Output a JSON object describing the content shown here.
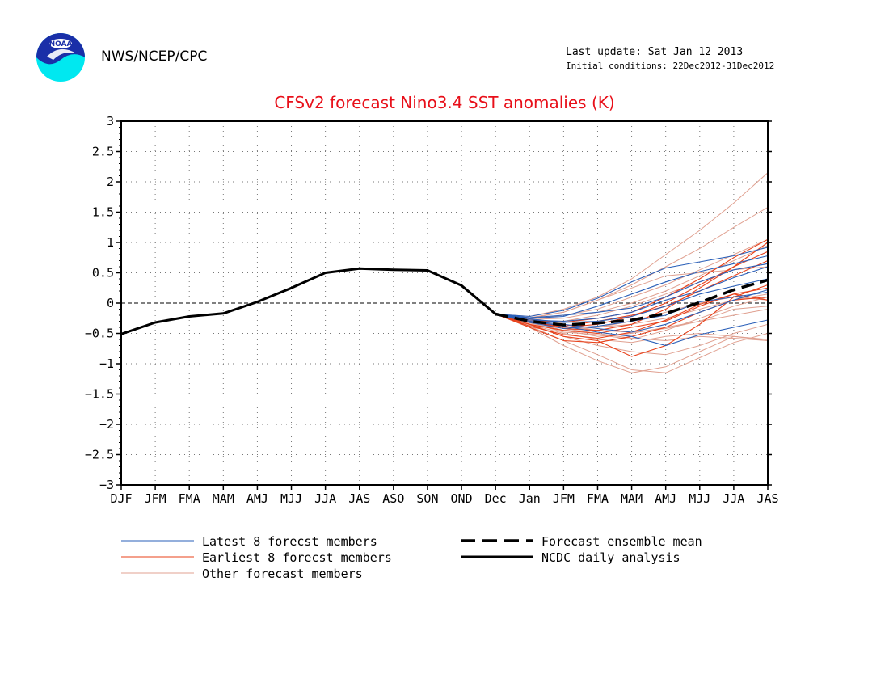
{
  "header": {
    "organization": "NWS/NCEP/CPC",
    "last_update": "Last update: Sat Jan 12 2013",
    "initial_conditions": "Initial conditions: 22Dec2012-31Dec2012",
    "logo_text": "NOAA"
  },
  "chart_data": {
    "type": "line",
    "title": "CFSv2 forecast Nino3.4 SST anomalies (K)",
    "xlabel": "",
    "ylabel": "",
    "ylim": [
      -3,
      3
    ],
    "yticks": [
      3,
      2.5,
      2,
      1.5,
      1,
      0.5,
      0,
      -0.5,
      -1,
      -1.5,
      -2,
      -2.5,
      -3
    ],
    "ytick_labels": [
      "3",
      "2.5",
      "2",
      "1.5",
      "1",
      "0.5",
      "0",
      "−0.5",
      "−1",
      "−1.5",
      "−2",
      "−2.5",
      "−3"
    ],
    "categories": [
      "DJF",
      "JFM",
      "FMA",
      "MAM",
      "AMJ",
      "MJJ",
      "JJA",
      "JAS",
      "ASO",
      "SON",
      "OND",
      "Dec",
      "Jan",
      "JFM",
      "FMA",
      "MAM",
      "AMJ",
      "MJJ",
      "JJA",
      "JAS"
    ],
    "grid": true,
    "colors": {
      "latest": "#2a5fb8",
      "earliest": "#e8401a",
      "other": "#e0a090",
      "mean": "#000000",
      "analysis": "#000000",
      "title": "#e8101a"
    },
    "analysis": {
      "name": "NCDC daily analysis",
      "start_index": 0,
      "values": [
        -0.51,
        -0.32,
        -0.22,
        -0.17,
        0.02,
        0.25,
        0.5,
        0.57,
        0.55,
        0.54,
        0.29,
        -0.18
      ]
    },
    "ensemble_mean": {
      "name": "Forecast ensemble mean",
      "start_index": 11,
      "values": [
        -0.18,
        -0.3,
        -0.36,
        -0.33,
        -0.28,
        -0.17,
        0.01,
        0.22,
        0.38
      ]
    },
    "latest_members": {
      "name": "Latest 8 forecst members",
      "start_index": 11,
      "members": [
        [
          -0.18,
          -0.22,
          -0.12,
          0.08,
          0.35,
          0.58,
          0.68,
          0.78,
          0.92
        ],
        [
          -0.18,
          -0.25,
          -0.22,
          -0.05,
          0.15,
          0.35,
          0.52,
          0.65,
          0.78
        ],
        [
          -0.18,
          -0.3,
          -0.38,
          -0.48,
          -0.55,
          -0.7,
          -0.52,
          -0.4,
          -0.28
        ],
        [
          -0.18,
          -0.28,
          -0.3,
          -0.25,
          -0.15,
          0.05,
          0.2,
          0.42,
          0.6
        ],
        [
          -0.18,
          -0.24,
          -0.2,
          -0.15,
          -0.08,
          0.1,
          0.35,
          0.55,
          0.65
        ],
        [
          -0.18,
          -0.32,
          -0.42,
          -0.38,
          -0.3,
          -0.2,
          0.02,
          0.1,
          0.18
        ],
        [
          -0.18,
          -0.26,
          -0.32,
          -0.3,
          -0.22,
          -0.05,
          0.15,
          0.28,
          0.4
        ],
        [
          -0.18,
          -0.3,
          -0.35,
          -0.42,
          -0.48,
          -0.35,
          -0.15,
          0.05,
          0.22
        ]
      ]
    },
    "earliest_members": {
      "name": "Earliest 8 forecst members",
      "start_index": 11,
      "members": [
        [
          -0.18,
          -0.35,
          -0.55,
          -0.62,
          -0.88,
          -0.7,
          -0.35,
          0.1,
          0.3
        ],
        [
          -0.18,
          -0.4,
          -0.62,
          -0.65,
          -0.55,
          -0.4,
          -0.15,
          0.05,
          0.1
        ],
        [
          -0.18,
          -0.3,
          -0.42,
          -0.45,
          -0.35,
          -0.1,
          0.25,
          0.6,
          1.0
        ],
        [
          -0.18,
          -0.28,
          -0.32,
          -0.25,
          -0.15,
          0.1,
          0.4,
          0.75,
          1.05
        ],
        [
          -0.18,
          -0.35,
          -0.45,
          -0.5,
          -0.4,
          -0.3,
          -0.05,
          0.15,
          0.05
        ],
        [
          -0.18,
          -0.32,
          -0.38,
          -0.3,
          -0.2,
          -0.05,
          0.2,
          0.45,
          0.7
        ],
        [
          -0.18,
          -0.38,
          -0.52,
          -0.58,
          -0.48,
          -0.28,
          -0.02,
          0.15,
          0.25
        ],
        [
          -0.18,
          -0.3,
          -0.4,
          -0.35,
          -0.22,
          0.0,
          0.3,
          0.6,
          0.85
        ]
      ]
    },
    "other_members": {
      "name": "Other forecast members",
      "start_index": 11,
      "members": [
        [
          -0.18,
          -0.22,
          -0.1,
          0.1,
          0.4,
          0.8,
          1.2,
          1.65,
          2.15
        ],
        [
          -0.18,
          -0.25,
          -0.15,
          0.05,
          0.3,
          0.6,
          0.9,
          1.25,
          1.58
        ],
        [
          -0.18,
          -0.4,
          -0.7,
          -0.95,
          -1.15,
          -1.05,
          -0.8,
          -0.55,
          -0.62
        ],
        [
          -0.18,
          -0.38,
          -0.62,
          -0.85,
          -1.1,
          -1.15,
          -0.9,
          -0.65,
          -0.5
        ],
        [
          -0.18,
          -0.35,
          -0.5,
          -0.6,
          -0.65,
          -0.55,
          -0.5,
          -0.55,
          -0.6
        ],
        [
          -0.18,
          -0.3,
          -0.45,
          -0.55,
          -0.5,
          -0.4,
          -0.3,
          -0.2,
          -0.1
        ],
        [
          -0.18,
          -0.28,
          -0.3,
          -0.2,
          -0.05,
          0.15,
          0.35,
          0.55,
          0.65
        ],
        [
          -0.18,
          -0.3,
          -0.4,
          -0.4,
          -0.35,
          -0.25,
          -0.1,
          0.05,
          0.15
        ],
        [
          -0.18,
          -0.24,
          -0.15,
          0.05,
          0.25,
          0.45,
          0.5,
          0.55,
          0.6
        ],
        [
          -0.18,
          -0.36,
          -0.55,
          -0.7,
          -0.8,
          -0.85,
          -0.7,
          -0.5,
          -0.35
        ],
        [
          -0.18,
          -0.33,
          -0.45,
          -0.4,
          -0.3,
          -0.15,
          0.0,
          0.1,
          0.05
        ],
        [
          -0.18,
          -0.27,
          -0.25,
          -0.15,
          0.0,
          0.2,
          0.45,
          0.7,
          0.95
        ],
        [
          -0.18,
          -0.32,
          -0.48,
          -0.52,
          -0.6,
          -0.45,
          -0.25,
          -0.05,
          0.1
        ],
        [
          -0.18,
          -0.29,
          -0.38,
          -0.45,
          -0.48,
          -0.42,
          -0.3,
          -0.1,
          -0.05
        ],
        [
          -0.18,
          -0.31,
          -0.42,
          -0.5,
          -0.58,
          -0.62,
          -0.55,
          -0.58,
          -0.62
        ],
        [
          -0.18,
          -0.26,
          -0.2,
          -0.1,
          0.1,
          0.3,
          0.55,
          0.8,
          1.05
        ]
      ]
    },
    "legend": {
      "placement": "bottom",
      "items": [
        {
          "label": "Latest 8 forecst members",
          "style": "latest"
        },
        {
          "label": "Earliest 8 forecst members",
          "style": "earliest"
        },
        {
          "label": "Other forecast members",
          "style": "other"
        },
        {
          "label": "Forecast ensemble mean",
          "style": "mean"
        },
        {
          "label": "NCDC daily analysis",
          "style": "analysis"
        }
      ]
    }
  }
}
